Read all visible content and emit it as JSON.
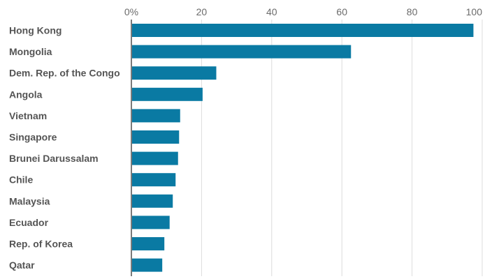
{
  "chart_data": {
    "type": "bar",
    "orientation": "horizontal",
    "categories": [
      "Hong Kong",
      "Mongolia",
      "Dem. Rep. of the Congo",
      "Angola",
      "Vietnam",
      "Singapore",
      "Brunei Darussalam",
      "Chile",
      "Malaysia",
      "Ecuador",
      "Rep. of Korea",
      "Qatar"
    ],
    "values": [
      97.5,
      62.6,
      24.2,
      20.3,
      13.9,
      13.6,
      13.3,
      12.6,
      11.8,
      10.9,
      9.4,
      8.8
    ],
    "xlim": [
      0,
      100
    ],
    "ticks": [
      0,
      20,
      40,
      60,
      80,
      100
    ],
    "tick_labels": [
      "0%",
      "20",
      "40",
      "60",
      "80",
      "100"
    ],
    "title": "",
    "xlabel": "",
    "ylabel": "",
    "grid": true,
    "bar_color": "#0a7aa3"
  }
}
